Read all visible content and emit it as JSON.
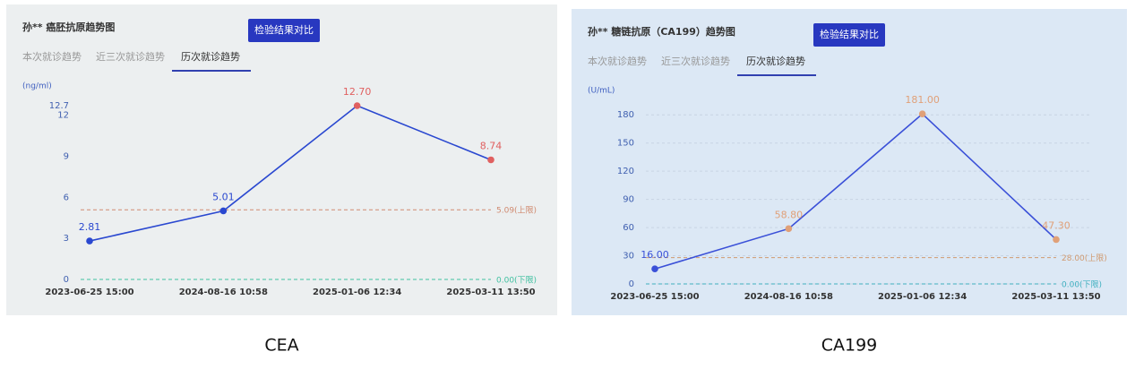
{
  "chart_data": [
    {
      "type": "line",
      "title": "孙** 癌胚抗原趋势图",
      "button": "检验结果对比",
      "tabs": [
        "本次就诊趋势",
        "近三次就诊趋势",
        "历次就诊趋势"
      ],
      "active_tab": 2,
      "y_label": "(ng/ml)",
      "categories": [
        "2023-06-25 15:00",
        "2024-08-16 10:58",
        "2025-01-06 12:34",
        "2025-03-11 13:50"
      ],
      "values": [
        2.81,
        5.01,
        12.7,
        8.74
      ],
      "value_labels": [
        "2.81",
        "5.01",
        "12.70",
        "8.74"
      ],
      "color": "#2a48d0",
      "high_color": "#e06060",
      "ylim": [
        0,
        12.7
      ],
      "yticks": [
        0,
        3,
        6,
        9,
        12,
        12.7
      ],
      "grid": false,
      "ref_lines": [
        {
          "value": 5.09,
          "label": "5.09(上限)",
          "color": "#d08a70"
        },
        {
          "value": 0,
          "label": "0.00(下限)",
          "color": "#40c0a0"
        }
      ],
      "caption": "CEA"
    },
    {
      "type": "line",
      "title": "孙** 糖链抗原（CA199）趋势图",
      "button": "检验结果对比",
      "tabs": [
        "本次就诊趋势",
        "近三次就诊趋势",
        "历次就诊趋势"
      ],
      "active_tab": 2,
      "y_label": "(U/mL)",
      "categories": [
        "2023-06-25 15:00",
        "2024-08-16 10:58",
        "2025-01-06 12:34",
        "2025-03-11 13:50"
      ],
      "values": [
        16.0,
        58.8,
        181.0,
        47.3
      ],
      "value_labels": [
        "16.00",
        "58.80",
        "181.00",
        "47.30"
      ],
      "color": "#3a50d8",
      "high_color": "#e0a078",
      "ylim": [
        0,
        185
      ],
      "yticks": [
        0,
        30,
        60,
        90,
        120,
        150,
        180
      ],
      "grid": true,
      "ref_lines": [
        {
          "value": 28,
          "label": "28.00(上限)",
          "color": "#d09a70"
        },
        {
          "value": 0,
          "label": "0.00(下限)",
          "color": "#40b0c0"
        }
      ],
      "caption": "CA199"
    }
  ]
}
